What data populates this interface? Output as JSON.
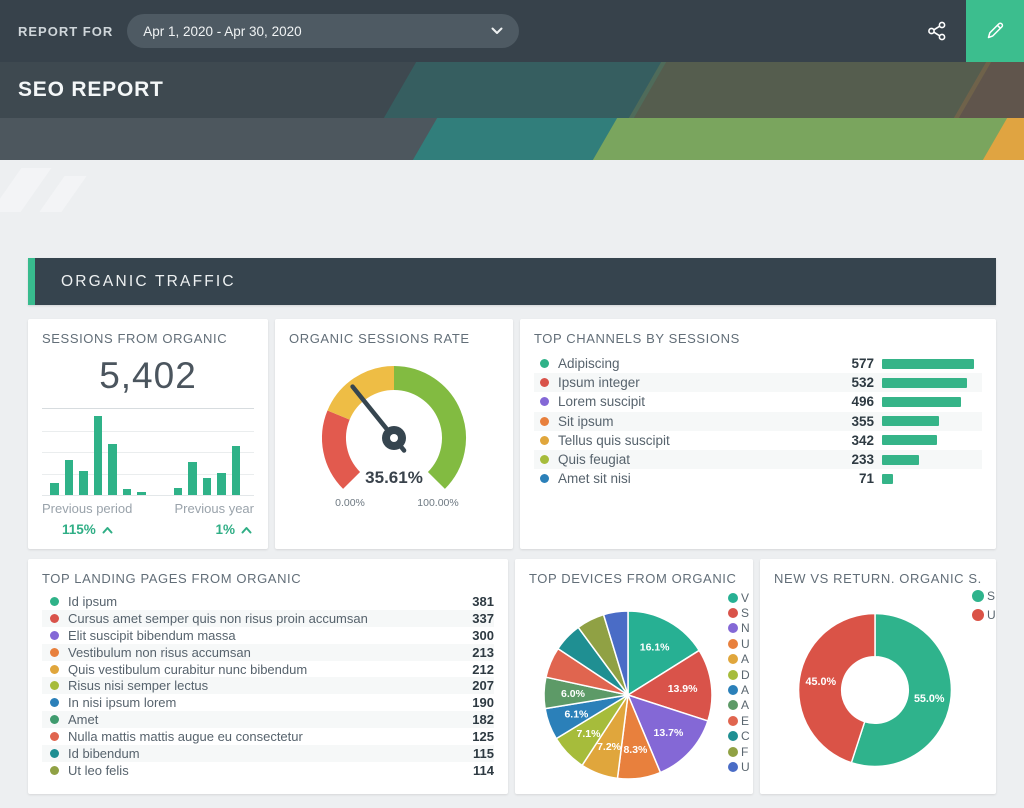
{
  "topbar": {
    "report_for": "REPORT FOR",
    "date_range": "Apr 1, 2020 - Apr 30, 2020"
  },
  "header": {
    "title": "SEO REPORT"
  },
  "section": {
    "title": "ORGANIC TRAFFIC"
  },
  "colors": {
    "accent_green": "#2fb288",
    "bar_green": "#35b488",
    "topbar_bg": "#37424b",
    "section_bg": "#36444e",
    "edit_button_bg": "#3cbe8e",
    "needle": "#36454f"
  },
  "cards": {
    "sessions": {
      "title": "SESSIONS FROM ORGANIC",
      "value": "5,402",
      "chart_data": {
        "type": "bar",
        "values_pct_of_max": [
          14,
          41,
          28,
          92,
          59,
          7,
          4,
          8,
          38,
          20,
          26,
          57
        ],
        "group_split_index": 7,
        "bar_color": "#2fb288"
      },
      "comparisons": [
        {
          "label": "Previous period",
          "value": "115%",
          "direction": "up"
        },
        {
          "label": "Previous year",
          "value": "1%",
          "direction": "up"
        }
      ]
    },
    "rate": {
      "title": "ORGANIC SESSIONS RATE",
      "value_label": "35.61%",
      "value": 35.61,
      "min_label": "0.00%",
      "max_label": "100.00%",
      "chart_data": {
        "type": "gauge",
        "range": [
          0,
          100
        ],
        "value": 35.61,
        "segments": [
          {
            "from": 0,
            "to": 25,
            "color": "#e25a4e"
          },
          {
            "from": 25,
            "to": 50,
            "color": "#eebd45"
          },
          {
            "from": 50,
            "to": 100,
            "color": "#82bb41"
          }
        ]
      }
    },
    "channels": {
      "title": "TOP CHANNELS BY SESSIONS",
      "chart_data": {
        "type": "bar",
        "max": 577,
        "rows": [
          {
            "label": "Adipiscing",
            "value": 577,
            "color": "#2fb288"
          },
          {
            "label": "Ipsum integer",
            "value": 532,
            "color": "#d9534a"
          },
          {
            "label": "Lorem suscipit",
            "value": 496,
            "color": "#8468d6"
          },
          {
            "label": "Sit ipsum",
            "value": 355,
            "color": "#e8803d"
          },
          {
            "label": "Tellus quis suscipit",
            "value": 342,
            "color": "#e0a63c"
          },
          {
            "label": "Quis feugiat",
            "value": 233,
            "color": "#a6bc3b"
          },
          {
            "label": "Amet sit nisi",
            "value": 71,
            "color": "#2b80b9"
          }
        ]
      }
    },
    "landing": {
      "title": "TOP LANDING PAGES FROM ORGANIC",
      "chart_data": {
        "type": "table",
        "rows": [
          {
            "label": "Id ipsum",
            "value": 381,
            "color": "#2fb288"
          },
          {
            "label": "Cursus amet semper quis non risus proin accumsan",
            "value": 337,
            "color": "#d9534a"
          },
          {
            "label": "Elit suscipit bibendum massa",
            "value": 300,
            "color": "#8468d6"
          },
          {
            "label": "Vestibulum non risus accumsan",
            "value": 213,
            "color": "#e8803d"
          },
          {
            "label": "Quis vestibulum curabitur nunc bibendum",
            "value": 212,
            "color": "#e0a63c"
          },
          {
            "label": "Risus nisi semper lectus",
            "value": 207,
            "color": "#a6bc3b"
          },
          {
            "label": "In nisi ipsum lorem",
            "value": 190,
            "color": "#2b80b9"
          },
          {
            "label": "Amet",
            "value": 182,
            "color": "#3f9b6e"
          },
          {
            "label": "Nulla mattis mattis augue eu consectetur",
            "value": 125,
            "color": "#e0654f"
          },
          {
            "label": "Id bibendum",
            "value": 115,
            "color": "#1f8f92"
          },
          {
            "label": "Ut leo felis",
            "value": 114,
            "color": "#90a144"
          }
        ]
      }
    },
    "devices": {
      "title": "TOP DEVICES FROM ORGANIC",
      "chart_data": {
        "type": "pie",
        "slices": [
          {
            "legend": "V",
            "value": 16.1,
            "pct_label": "16.1%",
            "color": "#27b093"
          },
          {
            "legend": "S",
            "value": 13.9,
            "pct_label": "13.9%",
            "color": "#d9534a"
          },
          {
            "legend": "N",
            "value": 13.7,
            "pct_label": "13.7%",
            "color": "#8468d6"
          },
          {
            "legend": "U",
            "value": 8.3,
            "pct_label": "8.3%",
            "color": "#e8803d"
          },
          {
            "legend": "A",
            "value": 7.2,
            "pct_label": "7.2%",
            "color": "#e0a63c"
          },
          {
            "legend": "D",
            "value": 7.1,
            "pct_label": "7.1%",
            "color": "#a6bc3b"
          },
          {
            "legend": "A",
            "value": 6.1,
            "pct_label": "6.1%",
            "color": "#2b80b9"
          },
          {
            "legend": "A",
            "value": 6.0,
            "pct_label": "6.0%",
            "color": "#5d9a67"
          },
          {
            "legend": "E",
            "value": 5.9,
            "pct_label": "",
            "color": "#e0654f"
          },
          {
            "legend": "C",
            "value": 5.6,
            "pct_label": "",
            "color": "#1f8f92"
          },
          {
            "legend": "F",
            "value": 5.4,
            "pct_label": "",
            "color": "#90a144"
          },
          {
            "legend": "U",
            "value": 4.7,
            "pct_label": "",
            "color": "#4a6cc6"
          }
        ],
        "legend_position": "right",
        "legend_clipped": true
      }
    },
    "newreturn": {
      "title": "NEW VS RETURN. ORGANIC S...",
      "chart_data": {
        "type": "pie",
        "donut": true,
        "slices": [
          {
            "legend": "S",
            "value": 55.0,
            "pct_label": "55.0%",
            "color": "#2fb38c"
          },
          {
            "legend": "U",
            "value": 45.0,
            "pct_label": "45.0%",
            "color": "#da5347"
          }
        ],
        "legend_position": "right",
        "legend_clipped": true
      }
    }
  }
}
